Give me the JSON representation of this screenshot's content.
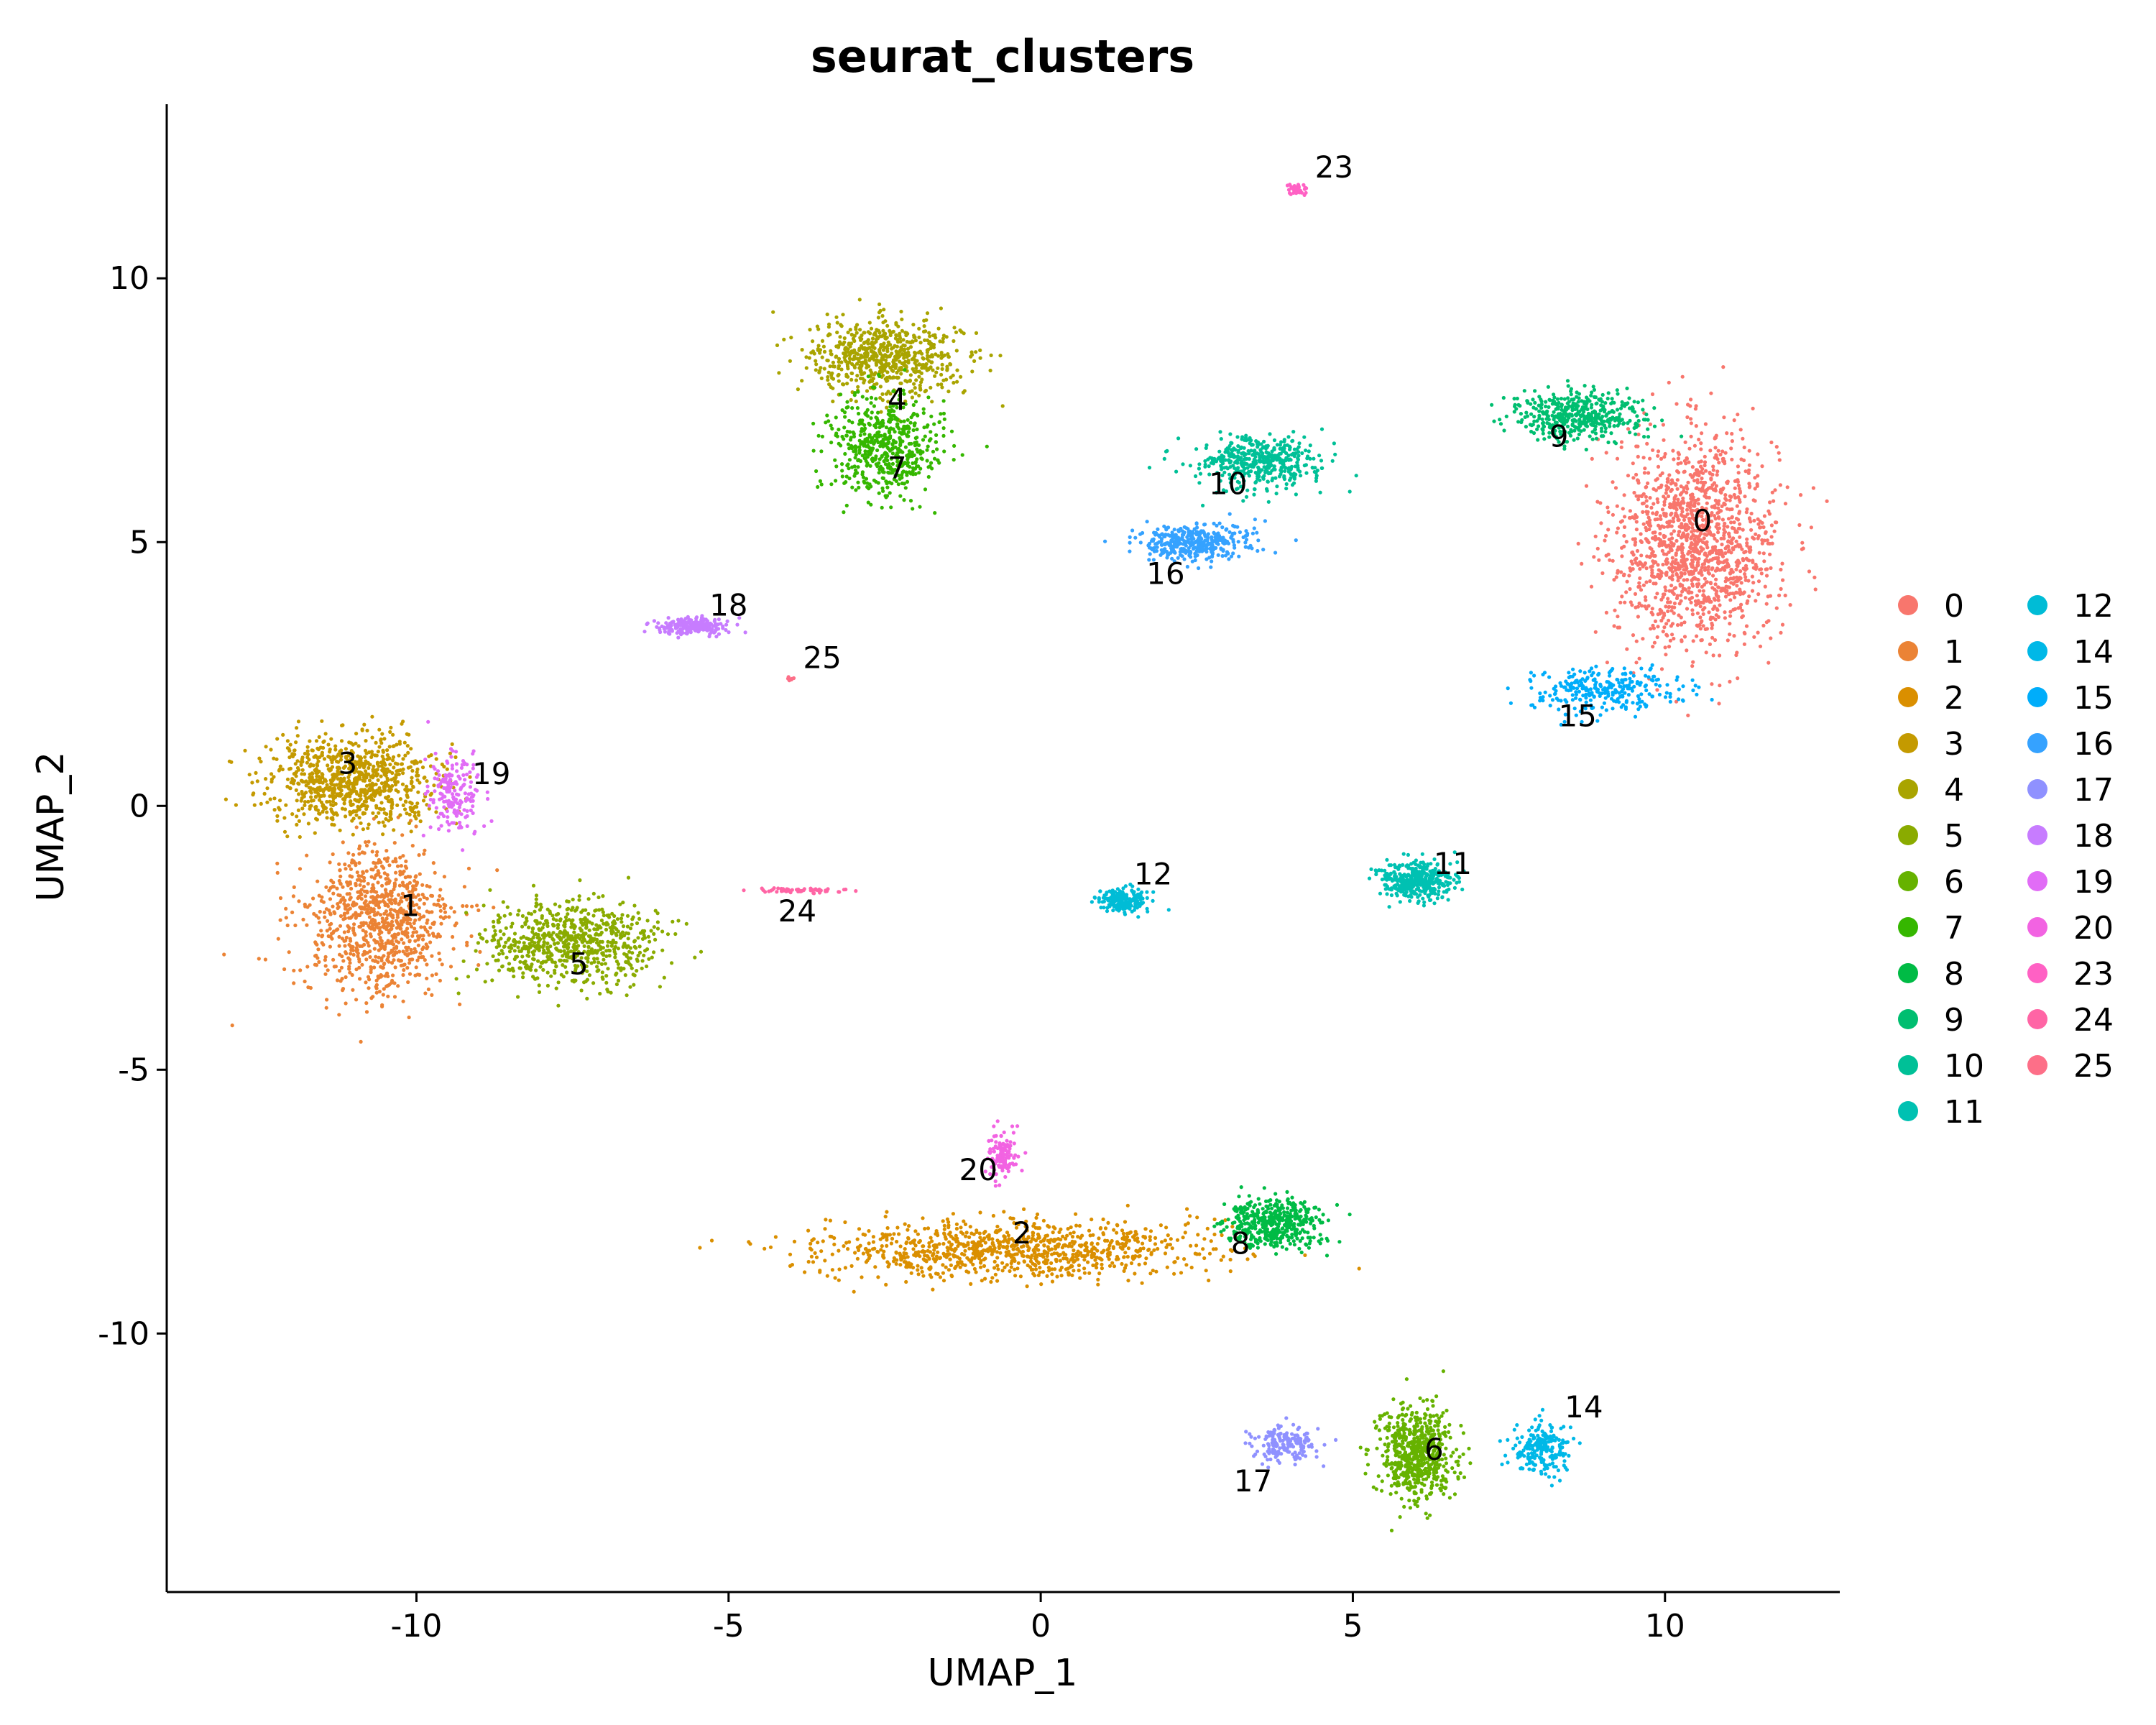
{
  "chart_data": {
    "type": "scatter",
    "title": "seurat_clusters",
    "xlabel": "UMAP_1",
    "ylabel": "UMAP_2",
    "xlim": [
      -14,
      12.8
    ],
    "ylim": [
      -14.9,
      13.3
    ],
    "x_ticks": [
      -10,
      -5,
      0,
      5,
      10
    ],
    "x_tick_labels": [
      "-10",
      "-5",
      "0",
      "5",
      "10"
    ],
    "y_ticks": [
      -10,
      -5,
      0,
      5,
      10
    ],
    "y_tick_labels": [
      "-10",
      "-5",
      "0",
      "5",
      "10"
    ],
    "grid": false,
    "legend_position": "right",
    "clusters": [
      {
        "name": "0",
        "label": "0",
        "color": "#F8766D",
        "center": [
          10.5,
          5.0
        ],
        "spread": [
          1.3,
          2.0
        ],
        "count": 1400,
        "label_pos": [
          10.6,
          5.4
        ]
      },
      {
        "name": "1",
        "label": "1",
        "color": "#EB8335",
        "center": [
          -10.6,
          -2.2
        ],
        "spread": [
          1.2,
          1.4
        ],
        "count": 900,
        "label_pos": [
          -10.1,
          -1.9
        ]
      },
      {
        "name": "2",
        "label": "2",
        "color": "#DA8F00",
        "center": [
          -0.5,
          -8.4
        ],
        "spread": [
          3.0,
          0.55
        ],
        "count": 950,
        "label_pos": [
          -0.3,
          -8.1
        ]
      },
      {
        "name": "3",
        "label": "3",
        "color": "#C49A00",
        "center": [
          -11.0,
          0.5
        ],
        "spread": [
          1.4,
          0.8
        ],
        "count": 850,
        "label_pos": [
          -11.1,
          0.8
        ]
      },
      {
        "name": "4",
        "label": "4",
        "color": "#A9A400",
        "center": [
          -2.5,
          8.5
        ],
        "spread": [
          1.2,
          0.7
        ],
        "count": 650,
        "label_pos": [
          -2.3,
          7.7
        ]
      },
      {
        "name": "5",
        "label": "5",
        "color": "#8AAB00",
        "center": [
          -7.5,
          -2.6
        ],
        "spread": [
          1.4,
          0.8
        ],
        "count": 700,
        "label_pos": [
          -7.4,
          -3.0
        ]
      },
      {
        "name": "6",
        "label": "6",
        "color": "#66B200",
        "center": [
          6.0,
          -12.3
        ],
        "spread": [
          0.6,
          0.9
        ],
        "count": 600,
        "label_pos": [
          6.3,
          -12.2
        ]
      },
      {
        "name": "7",
        "label": "7",
        "color": "#35B700",
        "center": [
          -2.5,
          6.8
        ],
        "spread": [
          0.9,
          0.9
        ],
        "count": 550,
        "label_pos": [
          -2.3,
          6.4
        ]
      },
      {
        "name": "8",
        "label": "8",
        "color": "#00BB45",
        "center": [
          3.7,
          -7.9
        ],
        "spread": [
          0.8,
          0.45
        ],
        "count": 450,
        "label_pos": [
          3.2,
          -8.3
        ]
      },
      {
        "name": "9",
        "label": "9",
        "color": "#00BE70",
        "center": [
          8.6,
          7.4
        ],
        "spread": [
          1.0,
          0.45
        ],
        "count": 450,
        "label_pos": [
          8.3,
          7.0
        ]
      },
      {
        "name": "10",
        "label": "10",
        "color": "#00C097",
        "center": [
          3.5,
          6.5
        ],
        "spread": [
          1.0,
          0.5
        ],
        "count": 450,
        "label_pos": [
          3.0,
          6.1
        ]
      },
      {
        "name": "11",
        "label": "11",
        "color": "#00C1B2",
        "center": [
          6.0,
          -1.4
        ],
        "spread": [
          0.6,
          0.35
        ],
        "count": 420,
        "label_pos": [
          6.6,
          -1.1
        ]
      },
      {
        "name": "12",
        "label": "12",
        "color": "#00BCD6",
        "center": [
          1.3,
          -1.8
        ],
        "spread": [
          0.4,
          0.22
        ],
        "count": 200,
        "label_pos": [
          1.8,
          -1.3
        ]
      },
      {
        "name": "14",
        "label": "14",
        "color": "#00B8E7",
        "center": [
          8.0,
          -12.2
        ],
        "spread": [
          0.45,
          0.5
        ],
        "count": 220,
        "label_pos": [
          8.7,
          -11.4
        ]
      },
      {
        "name": "15",
        "label": "15",
        "color": "#00ADFA",
        "center": [
          9.0,
          2.2
        ],
        "spread": [
          1.2,
          0.45
        ],
        "count": 280,
        "label_pos": [
          8.6,
          1.7
        ]
      },
      {
        "name": "16",
        "label": "16",
        "color": "#35A2FF",
        "center": [
          2.4,
          5.0
        ],
        "spread": [
          0.9,
          0.35
        ],
        "count": 380,
        "label_pos": [
          2.0,
          4.4
        ]
      },
      {
        "name": "17",
        "label": "17",
        "color": "#8F91FF",
        "center": [
          3.9,
          -12.1
        ],
        "spread": [
          0.5,
          0.35
        ],
        "count": 180,
        "label_pos": [
          3.4,
          -12.8
        ]
      },
      {
        "name": "18",
        "label": "18",
        "color": "#C77CFF",
        "center": [
          -5.6,
          3.4
        ],
        "spread": [
          0.6,
          0.15
        ],
        "count": 200,
        "label_pos": [
          -5.0,
          3.8
        ]
      },
      {
        "name": "19",
        "label": "19",
        "color": "#E16CF6",
        "center": [
          -9.4,
          0.2
        ],
        "spread": [
          0.4,
          0.8
        ],
        "count": 180,
        "label_pos": [
          -8.8,
          0.6
        ]
      },
      {
        "name": "20",
        "label": "20",
        "color": "#F263E2",
        "center": [
          -0.6,
          -6.6
        ],
        "spread": [
          0.25,
          0.45
        ],
        "count": 120,
        "label_pos": [
          -1.0,
          -6.9
        ]
      },
      {
        "name": "23",
        "label": "23",
        "color": "#FF61C4",
        "center": [
          4.1,
          11.7
        ],
        "spread": [
          0.15,
          0.1
        ],
        "count": 40,
        "label_pos": [
          4.7,
          12.1
        ]
      },
      {
        "name": "24",
        "label": "24",
        "color": "#FF65A5",
        "center": [
          -3.8,
          -1.6
        ],
        "spread": [
          0.9,
          0.05
        ],
        "count": 60,
        "label_pos": [
          -3.9,
          -2.0
        ]
      },
      {
        "name": "25",
        "label": "25",
        "color": "#FD6F88",
        "center": [
          -4.0,
          2.4
        ],
        "spread": [
          0.05,
          0.05
        ],
        "count": 10,
        "label_pos": [
          -3.5,
          2.8
        ]
      }
    ],
    "legend": {
      "columns": [
        [
          "0",
          "1",
          "2",
          "3",
          "4",
          "5",
          "6",
          "7",
          "8",
          "9",
          "10",
          "11"
        ],
        [
          "12",
          "14",
          "15",
          "16",
          "17",
          "18",
          "19",
          "20",
          "23",
          "24",
          "25"
        ]
      ]
    }
  }
}
